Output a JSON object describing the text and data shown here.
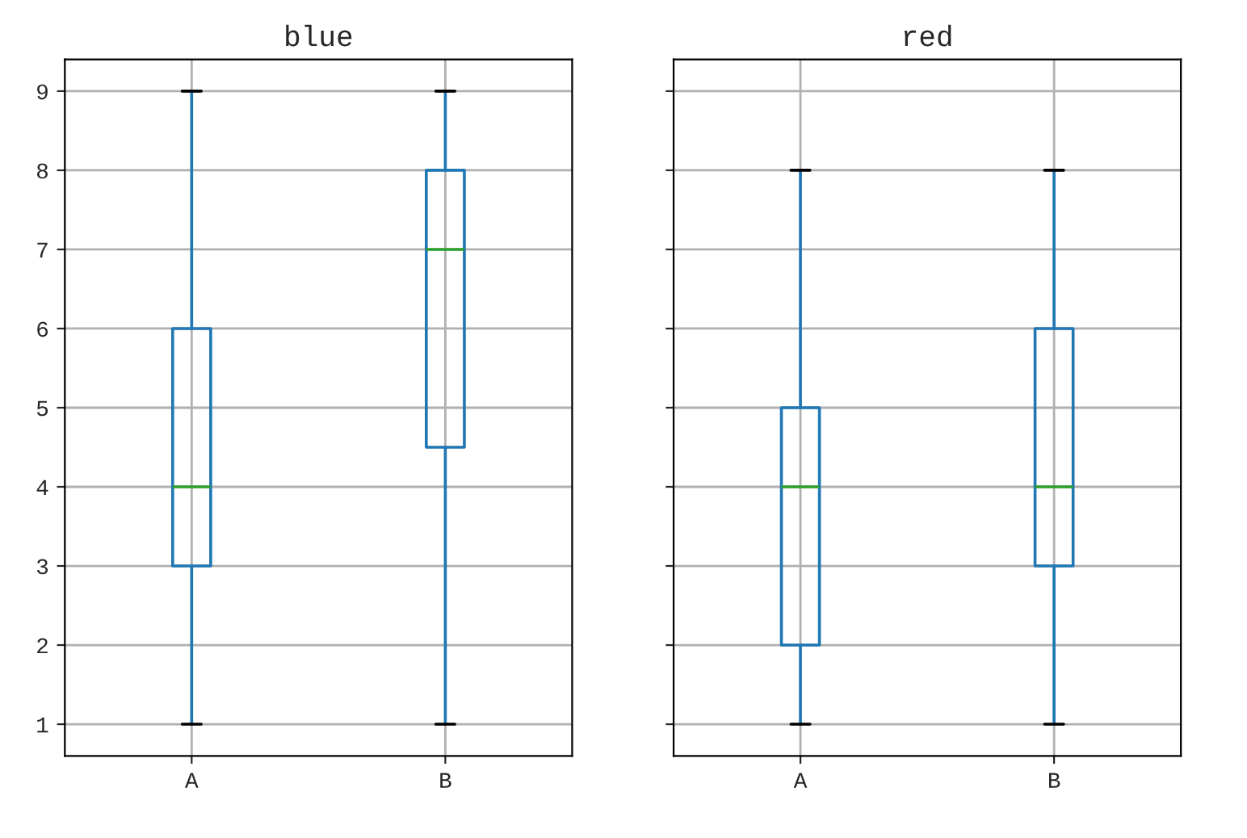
{
  "chart_data": [
    {
      "type": "box",
      "title": "blue",
      "categories": [
        "A",
        "B"
      ],
      "ylim": [
        0.6,
        9.4
      ],
      "yticks": [
        1,
        2,
        3,
        4,
        5,
        6,
        7,
        8,
        9
      ],
      "grid": true,
      "series": [
        {
          "color": "#1f77b4",
          "boxes": [
            {
              "low": 1,
              "q1": 3,
              "median": 4,
              "q3": 6,
              "high": 9
            },
            {
              "low": 1,
              "q1": 4.5,
              "median": 7,
              "q3": 8,
              "high": 9
            }
          ]
        }
      ]
    },
    {
      "type": "box",
      "title": "red",
      "categories": [
        "A",
        "B"
      ],
      "ylim": [
        0.6,
        9.4
      ],
      "yticks": [
        1,
        2,
        3,
        4,
        5,
        6,
        7,
        8,
        9
      ],
      "grid": true,
      "tick_labels": "x",
      "series": [
        {
          "color": "#1f77b4",
          "boxes": [
            {
              "low": 1,
              "q1": 2,
              "median": 4,
              "q3": 5,
              "high": 8
            },
            {
              "low": 1,
              "q1": 3,
              "median": 4,
              "q3": 6,
              "high": 8
            }
          ]
        }
      ]
    }
  ]
}
